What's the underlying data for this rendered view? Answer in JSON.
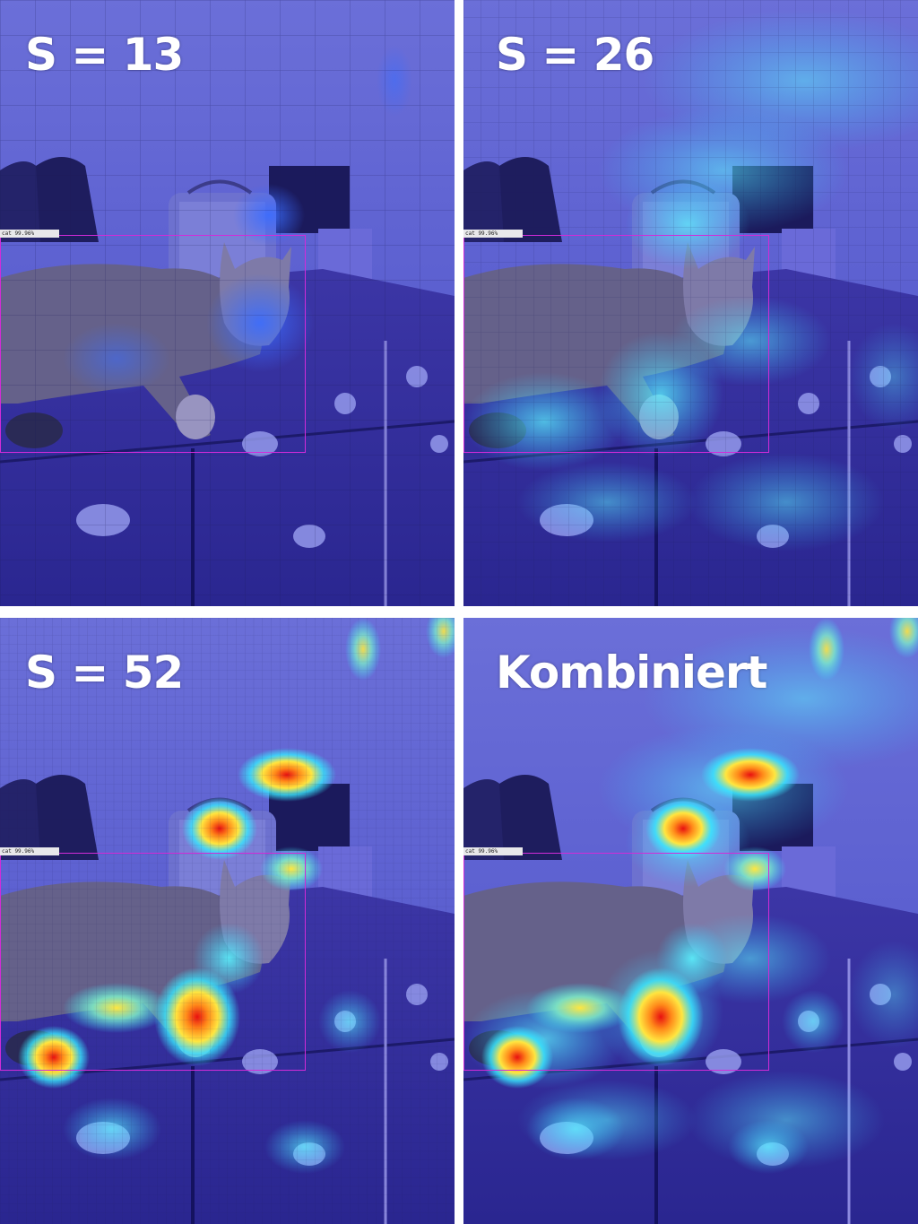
{
  "panels": [
    {
      "label": "S = 13",
      "grid_cells": 13
    },
    {
      "label": "S = 26",
      "grid_cells": 26
    },
    {
      "label": "S = 52",
      "grid_cells": 52
    },
    {
      "label": "Kombiniert",
      "grid_cells": 13
    }
  ],
  "detection": {
    "text": "cat 99.96%",
    "box_color": "#d22bd8"
  },
  "colors": {
    "overlay_base": "#2a2fb8",
    "heat_low": "#3a6cff",
    "heat_mid": "#38e8ff",
    "heat_high": "#ffe640",
    "heat_peak": "#e81010"
  }
}
